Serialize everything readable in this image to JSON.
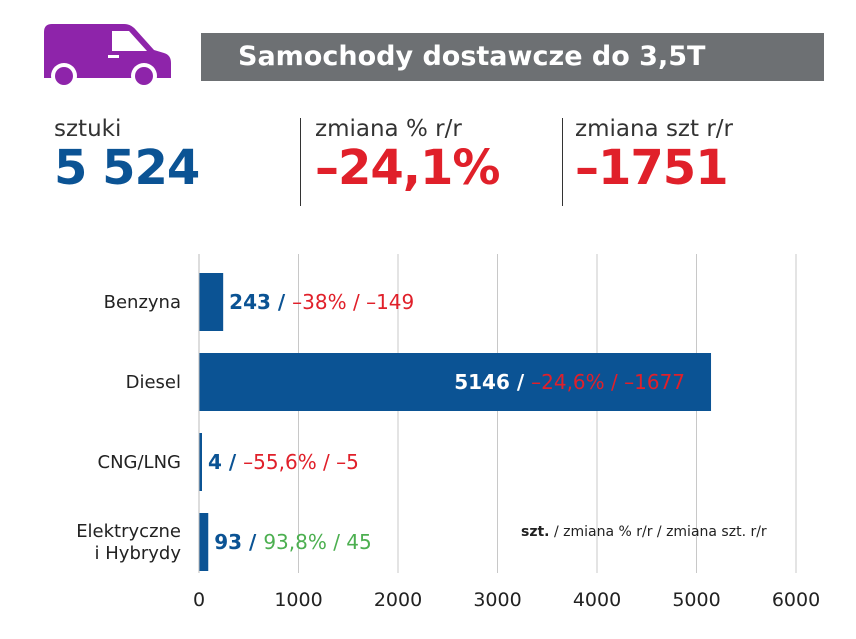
{
  "header": {
    "title": "Samochody dostawcze do 3,5T",
    "icon": "delivery-van-icon",
    "icon_color": "#8e24aa"
  },
  "stats": [
    {
      "label": "sztuki",
      "value": "5 524",
      "color": "#0b5394"
    },
    {
      "label": "zmiana % r/r",
      "value": "–24,1%",
      "color": "#e0202a"
    },
    {
      "label": "zmiana szt r/r",
      "value": "–1751",
      "color": "#e0202a"
    }
  ],
  "legend_note": {
    "bold": "szt.",
    "rest": " / zmiana % r/r / zmiana szt. r/r"
  },
  "chart_data": {
    "type": "bar",
    "orientation": "horizontal",
    "categories": [
      "Benzyna",
      "Diesel",
      "CNG/LNG",
      "Elektryczne i Hybrydy"
    ],
    "category_lines": [
      [
        "Benzyna"
      ],
      [
        "Diesel"
      ],
      [
        "CNG/LNG"
      ],
      [
        "Elektryczne",
        "i Hybrydy"
      ]
    ],
    "values": [
      243,
      5146,
      4,
      93
    ],
    "data_labels": [
      {
        "units": "243 / ",
        "change": "–38% / –149",
        "change_color": "#e0202a"
      },
      {
        "units": "5146 / ",
        "change": "–24,6% / –1677",
        "change_color": "#e0202a"
      },
      {
        "units": "4 / ",
        "change": "–55,6% / –5",
        "change_color": "#e0202a"
      },
      {
        "units": "93 / ",
        "change": "93,8% / 45",
        "change_color": "#4caf50"
      }
    ],
    "xlim": [
      0,
      6000
    ],
    "xticks": [
      0,
      1000,
      2000,
      3000,
      4000,
      5000,
      6000
    ],
    "grid": true,
    "bar_color": "#0b5394",
    "grid_color": "#c8c8c8"
  }
}
